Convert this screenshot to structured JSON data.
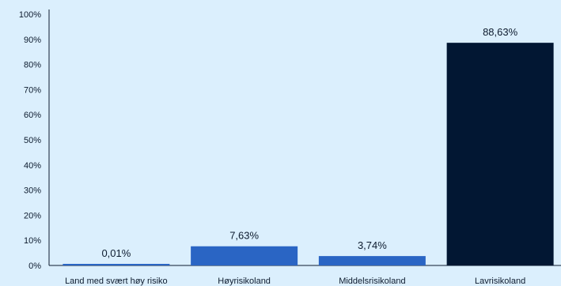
{
  "chart_data": {
    "type": "bar",
    "categories": [
      "Land med svært høy risiko",
      "Høyrisikoland",
      "Middelsrisikoland",
      "Lavrisikoland"
    ],
    "values": [
      0.01,
      7.63,
      3.74,
      88.63
    ],
    "value_labels": [
      "0,01%",
      "7,63%",
      "3,74%",
      "88,63%"
    ],
    "bar_colors": [
      "#2a65c4",
      "#2a65c4",
      "#2a65c4",
      "#021733"
    ],
    "ylim": [
      0,
      100
    ],
    "yticks": [
      0,
      10,
      20,
      30,
      40,
      50,
      60,
      70,
      80,
      90,
      100
    ],
    "ytick_labels": [
      "0%",
      "10%",
      "20%",
      "30%",
      "40%",
      "50%",
      "60%",
      "70%",
      "80%",
      "90%",
      "100%"
    ],
    "grid": false,
    "title": "",
    "xlabel": "",
    "ylabel": ""
  }
}
